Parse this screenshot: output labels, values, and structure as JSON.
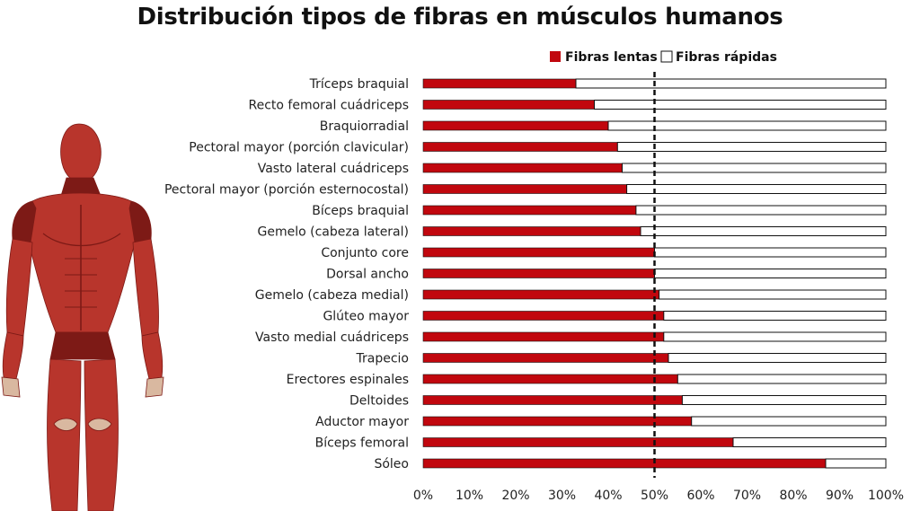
{
  "title": "Distribución tipos de fibras en músculos humanos",
  "colors": {
    "slow": "#c1070e",
    "fast": "#ffffff",
    "stroke": "#111111",
    "muscle": "#b8352c",
    "muscle_dark": "#7d1a16",
    "tendon": "#d9b8a0"
  },
  "illustration": {
    "icon": "human-muscle-anatomy-icon"
  },
  "chart_data": {
    "type": "bar",
    "orientation": "horizontal",
    "stacked": true,
    "title": "Distribución tipos de fibras en músculos humanos",
    "categories": [
      "Tríceps braquial",
      "Recto femoral cuádriceps",
      "Braquiorradial",
      "Pectoral mayor (porción clavicular)",
      "Vasto lateral cuádriceps",
      "Pectoral mayor (porción esternocostal)",
      "Bíceps braquial",
      "Gemelo (cabeza lateral)",
      "Conjunto core",
      "Dorsal ancho",
      "Gemelo (cabeza medial)",
      "Glúteo mayor",
      "Vasto medial cuádriceps",
      "Trapecio",
      "Erectores espinales",
      "Deltoides",
      "Aductor mayor",
      "Bíceps femoral",
      "Sóleo"
    ],
    "series": [
      {
        "name": "Fibras lentas",
        "values": [
          33,
          37,
          40,
          42,
          43,
          44,
          46,
          47,
          50,
          50,
          51,
          52,
          52,
          53,
          55,
          56,
          58,
          67,
          87
        ]
      },
      {
        "name": "Fibras rápidas",
        "values": [
          67,
          63,
          60,
          58,
          57,
          56,
          54,
          53,
          50,
          50,
          49,
          48,
          48,
          47,
          45,
          44,
          42,
          33,
          13
        ]
      }
    ],
    "xlim": [
      0,
      100
    ],
    "xticks": [
      "0%",
      "10%",
      "20%",
      "30%",
      "40%",
      "50%",
      "60%",
      "70%",
      "80%",
      "90%",
      "100%"
    ],
    "reference_line": 50,
    "legend": {
      "position": "top-right"
    },
    "grid": false
  }
}
